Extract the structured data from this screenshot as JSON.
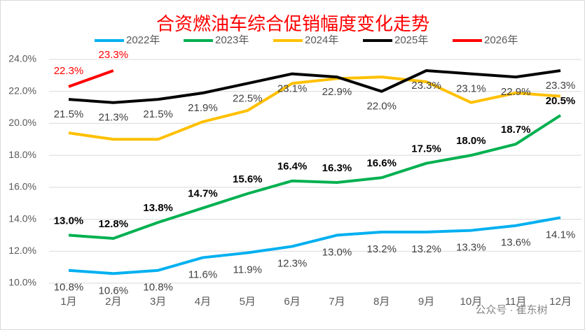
{
  "chart_data": {
    "type": "line",
    "title": "合资燃油车综合促销幅度变化走势",
    "categories": [
      "1月",
      "2月",
      "3月",
      "4月",
      "5月",
      "6月",
      "7月",
      "8月",
      "9月",
      "10月",
      "11月",
      "12月"
    ],
    "ylim": [
      10,
      24
    ],
    "yticks": [
      {
        "value": 10,
        "label": "10.0%"
      },
      {
        "value": 12,
        "label": "12.0%"
      },
      {
        "value": 14,
        "label": "14.0%"
      },
      {
        "value": 16,
        "label": "16.0%"
      },
      {
        "value": 18,
        "label": "18.0%"
      },
      {
        "value": 20,
        "label": "20.0%"
      },
      {
        "value": 22,
        "label": "22.0%"
      },
      {
        "value": 24,
        "label": "24.0%"
      }
    ],
    "grid": true,
    "legend": "top",
    "series": [
      {
        "name": "2022年",
        "color": "#00b0f0",
        "values": [
          10.8,
          10.6,
          10.8,
          11.6,
          11.9,
          12.3,
          13.0,
          13.2,
          13.2,
          13.3,
          13.6,
          14.1
        ],
        "value_labels": [
          "10.8%",
          "10.6%",
          "10.8%",
          "11.6%",
          "11.9%",
          "12.3%",
          "13.0%",
          "13.2%",
          "13.2%",
          "13.3%",
          "13.6%",
          "14.1%"
        ]
      },
      {
        "name": "2023年",
        "color": "#00b050",
        "values": [
          13.0,
          12.8,
          13.8,
          14.7,
          15.6,
          16.4,
          16.3,
          16.6,
          17.5,
          18.0,
          18.7,
          20.5
        ],
        "value_labels": [
          "13.0%",
          "12.8%",
          "13.8%",
          "14.7%",
          "15.6%",
          "16.4%",
          "16.3%",
          "16.6%",
          "17.5%",
          "18.0%",
          "18.7%",
          "20.5%"
        ]
      },
      {
        "name": "2024年",
        "color": "#ffc000",
        "values": [
          19.4,
          19.0,
          19.0,
          20.1,
          20.8,
          22.5,
          22.8,
          22.9,
          22.6,
          21.3,
          21.9,
          21.7
        ]
      },
      {
        "name": "2025年",
        "color": "#000000",
        "values": [
          21.5,
          21.3,
          21.5,
          21.9,
          22.5,
          23.1,
          22.9,
          22.0,
          23.3,
          23.1,
          22.9,
          23.3
        ],
        "value_labels": [
          "21.5%",
          "21.3%",
          "21.5%",
          "21.9%",
          "22.5%",
          "23.1%",
          "22.9%",
          "22.0%",
          "23.3%",
          "23.1%",
          "22.9%",
          "23.3%"
        ]
      },
      {
        "name": "2026年",
        "color": "#ff0000",
        "values": [
          22.3,
          23.3,
          null,
          null,
          null,
          null,
          null,
          null,
          null,
          null,
          null,
          null
        ],
        "value_labels": [
          "22.3%",
          "23.3%",
          null,
          null,
          null,
          null,
          null,
          null,
          null,
          null,
          null,
          null
        ]
      }
    ],
    "watermark": "公众号 · 崔东树"
  }
}
